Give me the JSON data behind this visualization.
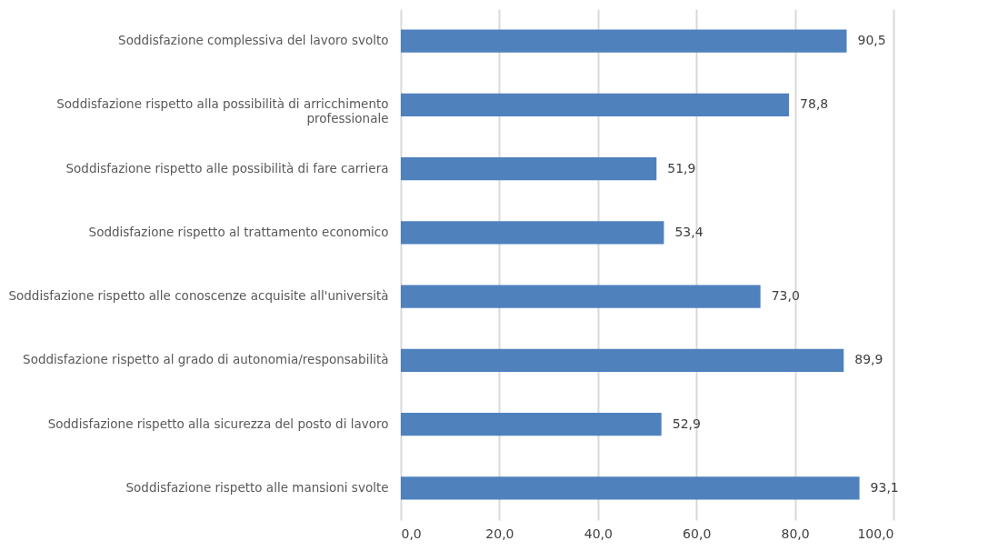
{
  "chart_data": {
    "type": "bar",
    "orientation": "horizontal",
    "categories": [
      "Soddisfazione complessiva del lavoro svolto",
      "Soddisfazione rispetto alla possibilità di arricchimento professionale",
      "Soddisfazione rispetto alle possibilità di fare carriera",
      "Soddisfazione rispetto al trattamento economico",
      "Soddisfazione rispetto alle conoscenze acquisite all'università",
      "Soddisfazione rispetto al grado di autonomia/responsabilità",
      "Soddisfazione rispetto alla sicurezza del posto di lavoro",
      "Soddisfazione rispetto alle mansioni svolte"
    ],
    "values": [
      90.5,
      78.8,
      51.9,
      53.4,
      73.0,
      89.9,
      52.9,
      93.1
    ],
    "value_labels": [
      "90,5",
      "78,8",
      "51,9",
      "53,4",
      "73,0",
      "89,9",
      "52,9",
      "93,1"
    ],
    "color": "#4f81bd",
    "xlim": [
      0,
      100
    ],
    "xticks": [
      {
        "value": 0,
        "label": "0,0"
      },
      {
        "value": 20,
        "label": "20,0"
      },
      {
        "value": 40,
        "label": "40,0"
      },
      {
        "value": 60,
        "label": "60,0"
      },
      {
        "value": 80,
        "label": "80,0"
      },
      {
        "value": 100,
        "label": "100,0"
      }
    ],
    "grid": "x"
  }
}
